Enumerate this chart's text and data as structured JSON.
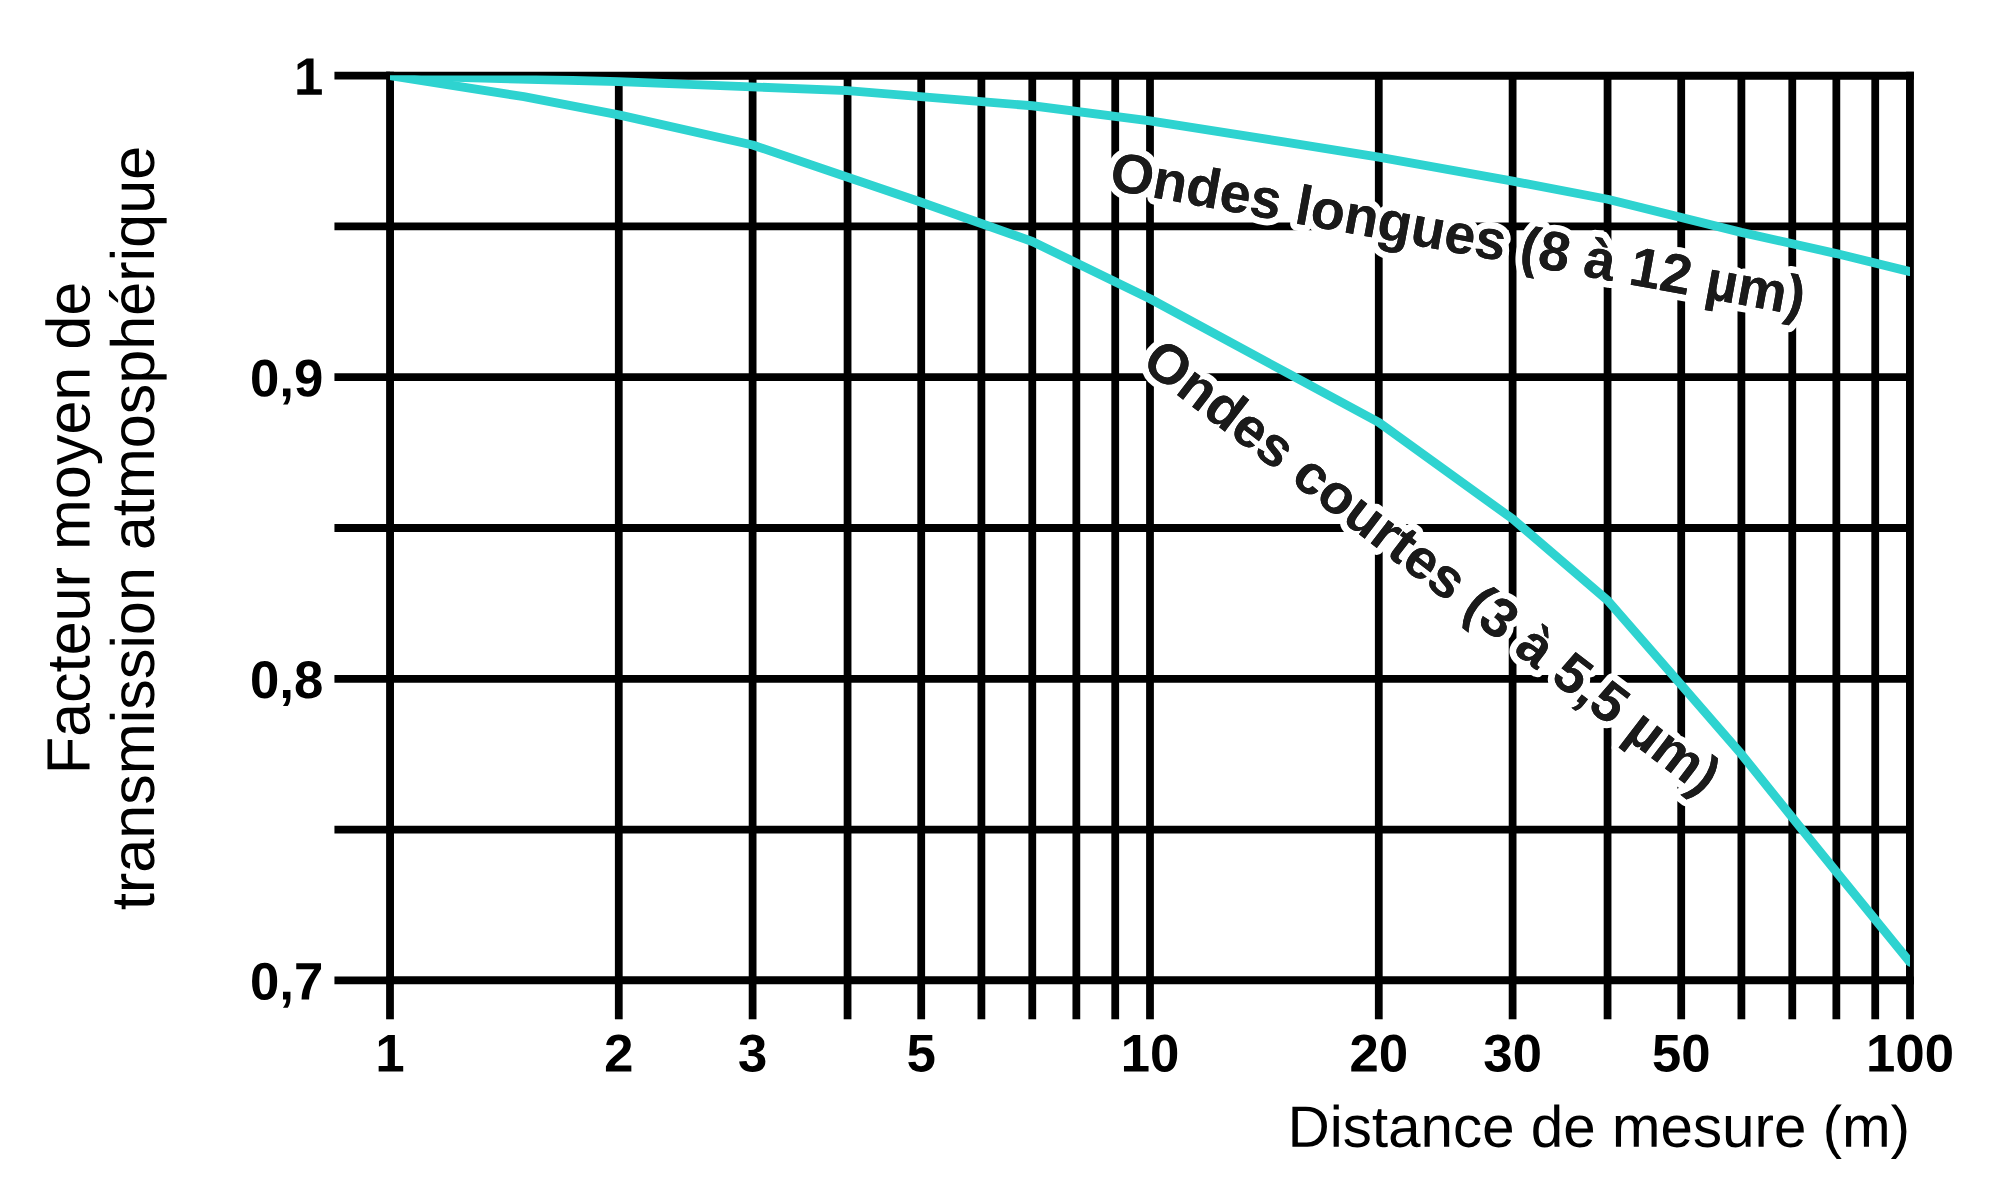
{
  "chart_data": {
    "type": "line",
    "xlabel": "Distance de mesure (m)",
    "ylabel": "Facteur moyen de\ntransmission atmosphérique",
    "log": "x",
    "xlim": [
      1,
      100
    ],
    "ylim": [
      0.7,
      1
    ],
    "xticks": [
      1,
      2,
      3,
      {
        "value": 4,
        "label": null
      },
      5,
      {
        "value": 6,
        "label": null
      },
      {
        "value": 7,
        "label": null
      },
      {
        "value": 8,
        "label": null
      },
      {
        "value": 9,
        "label": null
      },
      10,
      20,
      30,
      {
        "value": 40,
        "label": null
      },
      50,
      {
        "value": 60,
        "label": null
      },
      {
        "value": 70,
        "label": null
      },
      {
        "value": 80,
        "label": null
      },
      {
        "value": 90,
        "label": null
      },
      100
    ],
    "yticks": [
      {
        "value": 0.7,
        "label": "0,7"
      },
      {
        "value": 0.75,
        "label": null
      },
      {
        "value": 0.8,
        "label": "0,8"
      },
      {
        "value": 0.85,
        "label": null
      },
      {
        "value": 0.9,
        "label": "0,9"
      },
      {
        "value": 0.95,
        "label": null
      },
      1
    ],
    "grid": true,
    "legend": false,
    "marker": "none",
    "line_style": "solid",
    "series": [
      {
        "name": "Ondes longues (8 à 12 µm)",
        "color": "#2ed3d0",
        "x": [
          1,
          2,
          4,
          7,
          10,
          15,
          20,
          30,
          40,
          60,
          80,
          100
        ],
        "values": [
          1.0,
          0.998,
          0.995,
          0.99,
          0.985,
          0.978,
          0.973,
          0.965,
          0.959,
          0.948,
          0.941,
          0.935
        ]
      },
      {
        "name": "Ondes courtes (3 à 5,5 µm)",
        "color": "#2ed3d0",
        "x": [
          1,
          1.5,
          2,
          3,
          5,
          7,
          10,
          15,
          20,
          30,
          40,
          50,
          60,
          70,
          80,
          100
        ],
        "values": [
          1.0,
          0.993,
          0.987,
          0.977,
          0.958,
          0.945,
          0.926,
          0.902,
          0.885,
          0.853,
          0.826,
          0.798,
          0.775,
          0.754,
          0.736,
          0.706
        ]
      }
    ]
  }
}
